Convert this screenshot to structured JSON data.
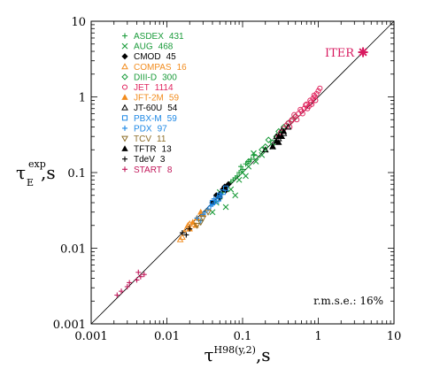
{
  "chart_data": {
    "type": "scatter",
    "title": "",
    "x_label": {
      "main": "τ",
      "sup": "H98(y,2)",
      "suffix": ",s"
    },
    "y_label": {
      "main": "τ",
      "sup": "exp",
      "sub": "E",
      "suffix": ",s"
    },
    "x_scale": "log",
    "y_scale": "log",
    "xlim": [
      0.001,
      10
    ],
    "ylim": [
      0.001,
      10
    ],
    "x_ticks": [
      {
        "value": 0.001,
        "label": "0.001"
      },
      {
        "value": 0.01,
        "label": "0.01"
      },
      {
        "value": 0.1,
        "label": "0.1"
      },
      {
        "value": 1,
        "label": "1"
      },
      {
        "value": 10,
        "label": "10"
      }
    ],
    "y_ticks": [
      {
        "value": 0.001,
        "label": "0.001"
      },
      {
        "value": 0.01,
        "label": "0.01"
      },
      {
        "value": 0.1,
        "label": "0.1"
      },
      {
        "value": 1,
        "label": "1"
      },
      {
        "value": 10,
        "label": "10"
      }
    ],
    "grid": false,
    "reference_line": "y = x",
    "legend_position": "top-left",
    "annotations": [
      {
        "text": "ITER",
        "x": 3.9,
        "y": 3.9,
        "color": "#d81b60"
      },
      {
        "text": "r.m.s.e.: 16%"
      }
    ],
    "series": [
      {
        "name": "ASDEX",
        "count": "431",
        "marker": "plus",
        "color": "#1a9b3a",
        "points": [
          [
            0.05,
            0.045
          ],
          [
            0.06,
            0.058
          ],
          [
            0.07,
            0.075
          ],
          [
            0.08,
            0.085
          ],
          [
            0.09,
            0.1
          ],
          [
            0.1,
            0.11
          ],
          [
            0.11,
            0.13
          ],
          [
            0.12,
            0.14
          ],
          [
            0.065,
            0.07
          ],
          [
            0.085,
            0.09
          ],
          [
            0.095,
            0.12
          ],
          [
            0.13,
            0.15
          ],
          [
            0.14,
            0.17
          ],
          [
            0.075,
            0.08
          ],
          [
            0.055,
            0.055
          ]
        ]
      },
      {
        "name": "AUG",
        "count": "468",
        "marker": "cross",
        "color": "#1a9b3a",
        "points": [
          [
            0.05,
            0.055
          ],
          [
            0.07,
            0.06
          ],
          [
            0.09,
            0.08
          ],
          [
            0.1,
            0.1
          ],
          [
            0.12,
            0.12
          ],
          [
            0.15,
            0.14
          ],
          [
            0.18,
            0.17
          ],
          [
            0.2,
            0.2
          ],
          [
            0.08,
            0.05
          ],
          [
            0.06,
            0.035
          ],
          [
            0.04,
            0.03
          ],
          [
            0.25,
            0.22
          ],
          [
            0.14,
            0.18
          ],
          [
            0.11,
            0.09
          ],
          [
            0.045,
            0.04
          ]
        ]
      },
      {
        "name": "CMOD",
        "count": "45",
        "marker": "diamond-filled",
        "color": "#000000",
        "points": [
          [
            0.04,
            0.04
          ],
          [
            0.045,
            0.05
          ],
          [
            0.05,
            0.052
          ],
          [
            0.055,
            0.06
          ],
          [
            0.06,
            0.058
          ],
          [
            0.065,
            0.07
          ],
          [
            0.05,
            0.047
          ],
          [
            0.058,
            0.065
          ]
        ]
      },
      {
        "name": "COMPAS",
        "count": "16",
        "marker": "triangle-open",
        "color": "#f28c1e",
        "points": [
          [
            0.015,
            0.013
          ],
          [
            0.017,
            0.016
          ],
          [
            0.018,
            0.018
          ],
          [
            0.02,
            0.021
          ],
          [
            0.016,
            0.014
          ],
          [
            0.019,
            0.02
          ]
        ]
      },
      {
        "name": "DIII-D",
        "count": "300",
        "marker": "diamond-open",
        "color": "#1a9b3a",
        "points": [
          [
            0.12,
            0.14
          ],
          [
            0.15,
            0.16
          ],
          [
            0.2,
            0.22
          ],
          [
            0.25,
            0.25
          ],
          [
            0.3,
            0.35
          ],
          [
            0.35,
            0.4
          ],
          [
            0.4,
            0.45
          ],
          [
            0.18,
            0.2
          ],
          [
            0.22,
            0.27
          ],
          [
            0.28,
            0.3
          ],
          [
            0.45,
            0.5
          ],
          [
            0.5,
            0.55
          ]
        ]
      },
      {
        "name": "JET",
        "count": "1114",
        "marker": "circle-open",
        "color": "#e0245e",
        "points": [
          [
            0.3,
            0.3
          ],
          [
            0.35,
            0.38
          ],
          [
            0.4,
            0.45
          ],
          [
            0.45,
            0.5
          ],
          [
            0.5,
            0.55
          ],
          [
            0.55,
            0.6
          ],
          [
            0.6,
            0.65
          ],
          [
            0.65,
            0.7
          ],
          [
            0.7,
            0.8
          ],
          [
            0.8,
            0.85
          ],
          [
            0.85,
            0.95
          ],
          [
            0.9,
            1.0
          ],
          [
            0.95,
            1.1
          ],
          [
            1.0,
            1.2
          ],
          [
            0.75,
            0.75
          ],
          [
            0.42,
            0.4
          ],
          [
            0.52,
            0.5
          ],
          [
            0.62,
            0.6
          ],
          [
            0.72,
            0.7
          ],
          [
            0.82,
            0.8
          ],
          [
            0.92,
            0.9
          ],
          [
            1.05,
            1.3
          ],
          [
            0.38,
            0.42
          ],
          [
            0.48,
            0.58
          ],
          [
            0.58,
            0.68
          ],
          [
            0.68,
            0.78
          ],
          [
            0.78,
            0.9
          ],
          [
            0.88,
            1.05
          ],
          [
            0.32,
            0.34
          ],
          [
            0.44,
            0.48
          ]
        ]
      },
      {
        "name": "JFT-2M",
        "count": "59",
        "marker": "triangle-filled",
        "color": "#f28c1e",
        "points": [
          [
            0.02,
            0.018
          ],
          [
            0.022,
            0.022
          ],
          [
            0.025,
            0.025
          ],
          [
            0.028,
            0.03
          ],
          [
            0.03,
            0.028
          ],
          [
            0.024,
            0.02
          ]
        ]
      },
      {
        "name": "JT-60U",
        "count": "54",
        "marker": "triangle-open",
        "color": "#000000",
        "points": [
          [
            0.2,
            0.2
          ],
          [
            0.25,
            0.22
          ],
          [
            0.3,
            0.28
          ],
          [
            0.35,
            0.33
          ],
          [
            0.4,
            0.4
          ],
          [
            0.28,
            0.3
          ],
          [
            0.33,
            0.36
          ]
        ]
      },
      {
        "name": "PBX-M",
        "count": "59",
        "marker": "square-open",
        "color": "#1e88e5",
        "points": [
          [
            0.04,
            0.04
          ],
          [
            0.045,
            0.042
          ],
          [
            0.05,
            0.05
          ],
          [
            0.055,
            0.055
          ],
          [
            0.06,
            0.062
          ],
          [
            0.048,
            0.045
          ]
        ]
      },
      {
        "name": "PDX",
        "count": "97",
        "marker": "plus",
        "color": "#1e88e5",
        "points": [
          [
            0.025,
            0.025
          ],
          [
            0.03,
            0.028
          ],
          [
            0.035,
            0.033
          ],
          [
            0.04,
            0.038
          ],
          [
            0.045,
            0.042
          ],
          [
            0.05,
            0.05
          ],
          [
            0.028,
            0.023
          ],
          [
            0.032,
            0.03
          ],
          [
            0.038,
            0.036
          ],
          [
            0.042,
            0.045
          ]
        ]
      },
      {
        "name": "TCV",
        "count": "11",
        "marker": "triangle-down-open",
        "color": "#8d6e2a",
        "points": [
          [
            0.025,
            0.02
          ],
          [
            0.03,
            0.025
          ],
          [
            0.035,
            0.03
          ],
          [
            0.028,
            0.022
          ]
        ]
      },
      {
        "name": "TFTR",
        "count": "13",
        "marker": "triangle-filled",
        "color": "#000000",
        "points": [
          [
            0.25,
            0.22
          ],
          [
            0.28,
            0.26
          ],
          [
            0.3,
            0.3
          ],
          [
            0.33,
            0.3
          ],
          [
            0.35,
            0.35
          ],
          [
            0.3,
            0.25
          ]
        ]
      },
      {
        "name": "TdeV",
        "count": "3",
        "marker": "plus",
        "color": "#000000",
        "points": [
          [
            0.016,
            0.016
          ],
          [
            0.02,
            0.018
          ],
          [
            0.018,
            0.015
          ]
        ]
      },
      {
        "name": "START",
        "count": "8",
        "marker": "plus",
        "color": "#c2185b",
        "points": [
          [
            0.0022,
            0.0024
          ],
          [
            0.0025,
            0.0027
          ],
          [
            0.003,
            0.0031
          ],
          [
            0.0032,
            0.0035
          ],
          [
            0.004,
            0.0038
          ],
          [
            0.0045,
            0.0042
          ],
          [
            0.005,
            0.0045
          ],
          [
            0.0042,
            0.0048
          ]
        ]
      }
    ],
    "iter_point": {
      "x": 3.9,
      "y": 3.9,
      "marker": "star",
      "color": "#d81b60"
    }
  }
}
